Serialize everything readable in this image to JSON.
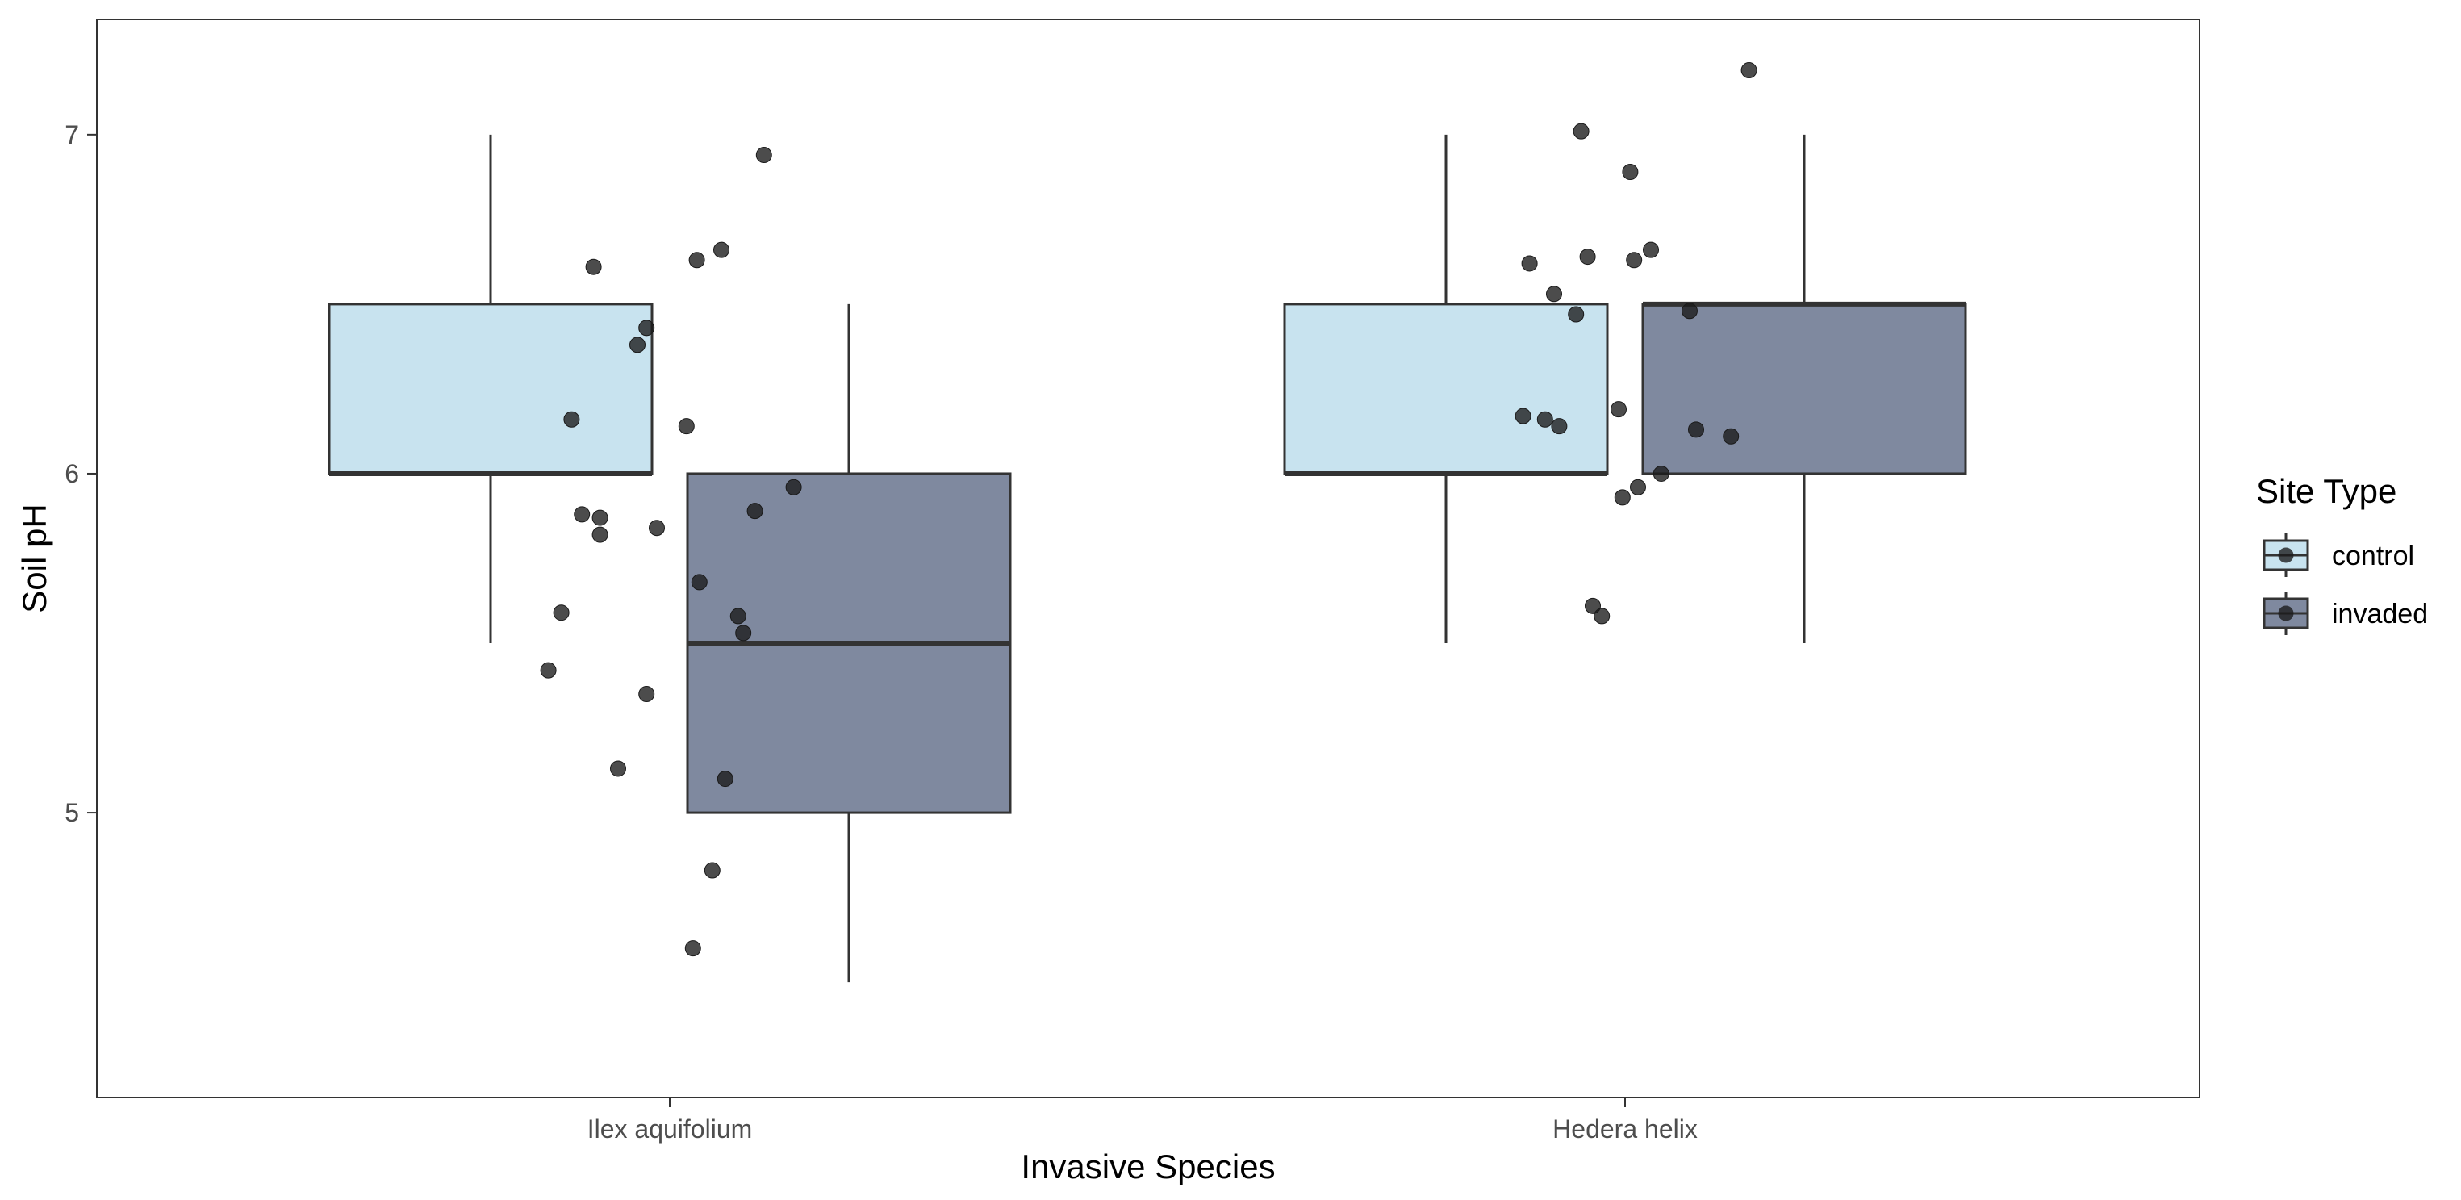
{
  "chart_data": {
    "type": "boxplot",
    "title": "",
    "xlabel": "Invasive Species",
    "ylabel": "Soil pH",
    "categories": [
      "Ilex aquifolium",
      "Hedera helix"
    ],
    "ylim": [
      4.16,
      7.34
    ],
    "yticks": [
      5,
      6,
      7
    ],
    "grid": false,
    "legend": {
      "title": "Site Type",
      "position": "right",
      "entries": [
        "control",
        "invaded"
      ]
    },
    "colors": {
      "control": "#c8e3ef",
      "invaded": "#7f899f",
      "outline": "#333333",
      "point": "#1a1a1a"
    },
    "series": [
      {
        "name": "control",
        "boxes": [
          {
            "category": "Ilex aquifolium",
            "min": 5.5,
            "q1": 6.0,
            "median": 6.0,
            "q3": 6.5,
            "max": 7.0
          },
          {
            "category": "Hedera helix",
            "min": 5.5,
            "q1": 6.0,
            "median": 6.0,
            "q3": 6.5,
            "max": 7.0
          }
        ]
      },
      {
        "name": "invaded",
        "boxes": [
          {
            "category": "Ilex aquifolium",
            "min": 4.5,
            "q1": 5.0,
            "median": 5.5,
            "q3": 6.0,
            "max": 6.5
          },
          {
            "category": "Hedera helix",
            "min": 5.5,
            "q1": 6.0,
            "median": 6.5,
            "q3": 6.5,
            "max": 7.0
          }
        ]
      }
    ],
    "points": [
      {
        "category": "Ilex aquifolium",
        "offset": -0.188,
        "y": 5.42
      },
      {
        "category": "Ilex aquifolium",
        "offset": -0.168,
        "y": 5.59
      },
      {
        "category": "Ilex aquifolium",
        "offset": -0.152,
        "y": 6.16
      },
      {
        "category": "Ilex aquifolium",
        "offset": -0.136,
        "y": 5.88
      },
      {
        "category": "Ilex aquifolium",
        "offset": -0.118,
        "y": 6.61
      },
      {
        "category": "Ilex aquifolium",
        "offset": -0.108,
        "y": 5.87
      },
      {
        "category": "Ilex aquifolium",
        "offset": -0.108,
        "y": 5.82
      },
      {
        "category": "Ilex aquifolium",
        "offset": -0.08,
        "y": 5.13
      },
      {
        "category": "Ilex aquifolium",
        "offset": -0.05,
        "y": 6.38
      },
      {
        "category": "Ilex aquifolium",
        "offset": -0.036,
        "y": 6.43
      },
      {
        "category": "Ilex aquifolium",
        "offset": -0.036,
        "y": 5.35
      },
      {
        "category": "Ilex aquifolium",
        "offset": -0.02,
        "y": 5.84
      },
      {
        "category": "Ilex aquifolium",
        "offset": 0.026,
        "y": 6.14
      },
      {
        "category": "Ilex aquifolium",
        "offset": 0.036,
        "y": 4.6
      },
      {
        "category": "Ilex aquifolium",
        "offset": 0.042,
        "y": 6.63
      },
      {
        "category": "Ilex aquifolium",
        "offset": 0.046,
        "y": 5.68
      },
      {
        "category": "Ilex aquifolium",
        "offset": 0.066,
        "y": 4.83
      },
      {
        "category": "Ilex aquifolium",
        "offset": 0.08,
        "y": 6.66
      },
      {
        "category": "Ilex aquifolium",
        "offset": 0.086,
        "y": 5.1
      },
      {
        "category": "Ilex aquifolium",
        "offset": 0.106,
        "y": 5.58
      },
      {
        "category": "Ilex aquifolium",
        "offset": 0.114,
        "y": 5.53
      },
      {
        "category": "Ilex aquifolium",
        "offset": 0.132,
        "y": 5.89
      },
      {
        "category": "Ilex aquifolium",
        "offset": 0.146,
        "y": 6.94
      },
      {
        "category": "Ilex aquifolium",
        "offset": 0.192,
        "y": 5.96
      },
      {
        "category": "Hedera helix",
        "offset": -0.158,
        "y": 6.17
      },
      {
        "category": "Hedera helix",
        "offset": -0.148,
        "y": 6.62
      },
      {
        "category": "Hedera helix",
        "offset": -0.124,
        "y": 6.16
      },
      {
        "category": "Hedera helix",
        "offset": -0.11,
        "y": 6.53
      },
      {
        "category": "Hedera helix",
        "offset": -0.102,
        "y": 6.14
      },
      {
        "category": "Hedera helix",
        "offset": -0.076,
        "y": 6.47
      },
      {
        "category": "Hedera helix",
        "offset": -0.068,
        "y": 7.01
      },
      {
        "category": "Hedera helix",
        "offset": -0.058,
        "y": 6.64
      },
      {
        "category": "Hedera helix",
        "offset": -0.05,
        "y": 5.61
      },
      {
        "category": "Hedera helix",
        "offset": -0.036,
        "y": 5.58
      },
      {
        "category": "Hedera helix",
        "offset": -0.01,
        "y": 6.19
      },
      {
        "category": "Hedera helix",
        "offset": -0.004,
        "y": 5.93
      },
      {
        "category": "Hedera helix",
        "offset": 0.008,
        "y": 6.89
      },
      {
        "category": "Hedera helix",
        "offset": 0.014,
        "y": 6.63
      },
      {
        "category": "Hedera helix",
        "offset": 0.02,
        "y": 5.96
      },
      {
        "category": "Hedera helix",
        "offset": 0.04,
        "y": 6.66
      },
      {
        "category": "Hedera helix",
        "offset": 0.056,
        "y": 6.0
      },
      {
        "category": "Hedera helix",
        "offset": 0.1,
        "y": 6.48
      },
      {
        "category": "Hedera helix",
        "offset": 0.11,
        "y": 6.13
      },
      {
        "category": "Hedera helix",
        "offset": 0.164,
        "y": 6.11
      },
      {
        "category": "Hedera helix",
        "offset": 0.192,
        "y": 7.19
      }
    ]
  }
}
